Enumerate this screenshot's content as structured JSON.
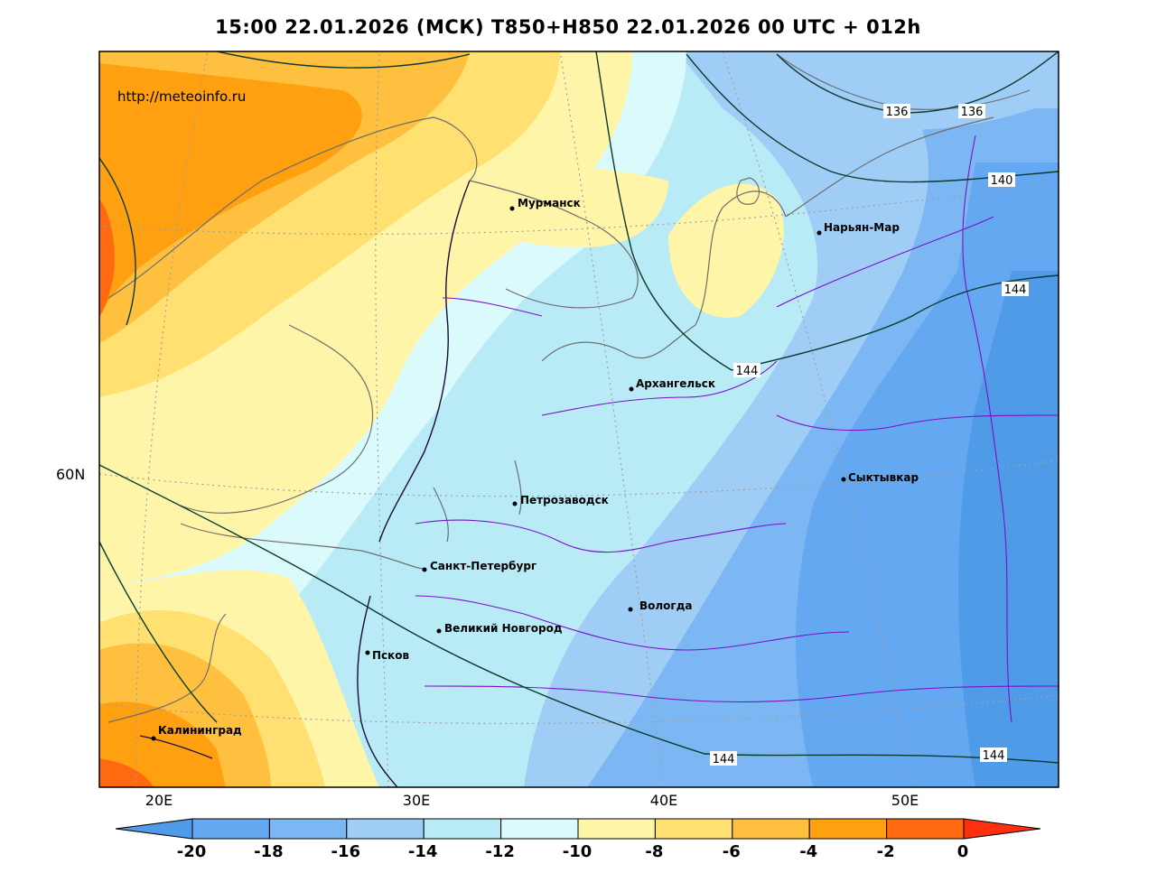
{
  "title": "15:00 22.01.2026 (МСК) T850+H850 22.01.2026 00 UTC + 012h",
  "url": "http://meteoinfo.ru",
  "cities": [
    {
      "name": "Мурманск"
    },
    {
      "name": "Нарьян-Мар"
    },
    {
      "name": "Архангельск"
    },
    {
      "name": "Сыктывкар"
    },
    {
      "name": "Петрозаводск"
    },
    {
      "name": "Санкт-Петербург"
    },
    {
      "name": "Вологда"
    },
    {
      "name": "Великий Новгород"
    },
    {
      "name": "Псков"
    },
    {
      "name": "Калининград"
    }
  ],
  "axes": {
    "lat_labels": [
      "60N"
    ],
    "lon_labels": [
      "20E",
      "30E",
      "40E",
      "50E"
    ]
  },
  "isohypse_labels": [
    "136",
    "136",
    "140",
    "144",
    "144",
    "144",
    "144"
  ],
  "colorbar": {
    "labels": [
      "-20",
      "-18",
      "-16",
      "-14",
      "-12",
      "-10",
      "-8",
      "-6",
      "-4",
      "-2",
      "0"
    ],
    "colors": [
      "#4f9be8",
      "#63a8f0",
      "#7cb7f3",
      "#9fcdf6",
      "#b8ebf6",
      "#dbfafb",
      "#fff5a8",
      "#ffe070",
      "#ffc040",
      "#ffa010",
      "#ff6a10",
      "#ff3010"
    ]
  },
  "colors": {
    "coast": "#6e6e6e",
    "border": "#7a10c8",
    "country": "#1a0a3a",
    "isohypse": "#0a3a2a",
    "grid": "#a0a0a0"
  }
}
